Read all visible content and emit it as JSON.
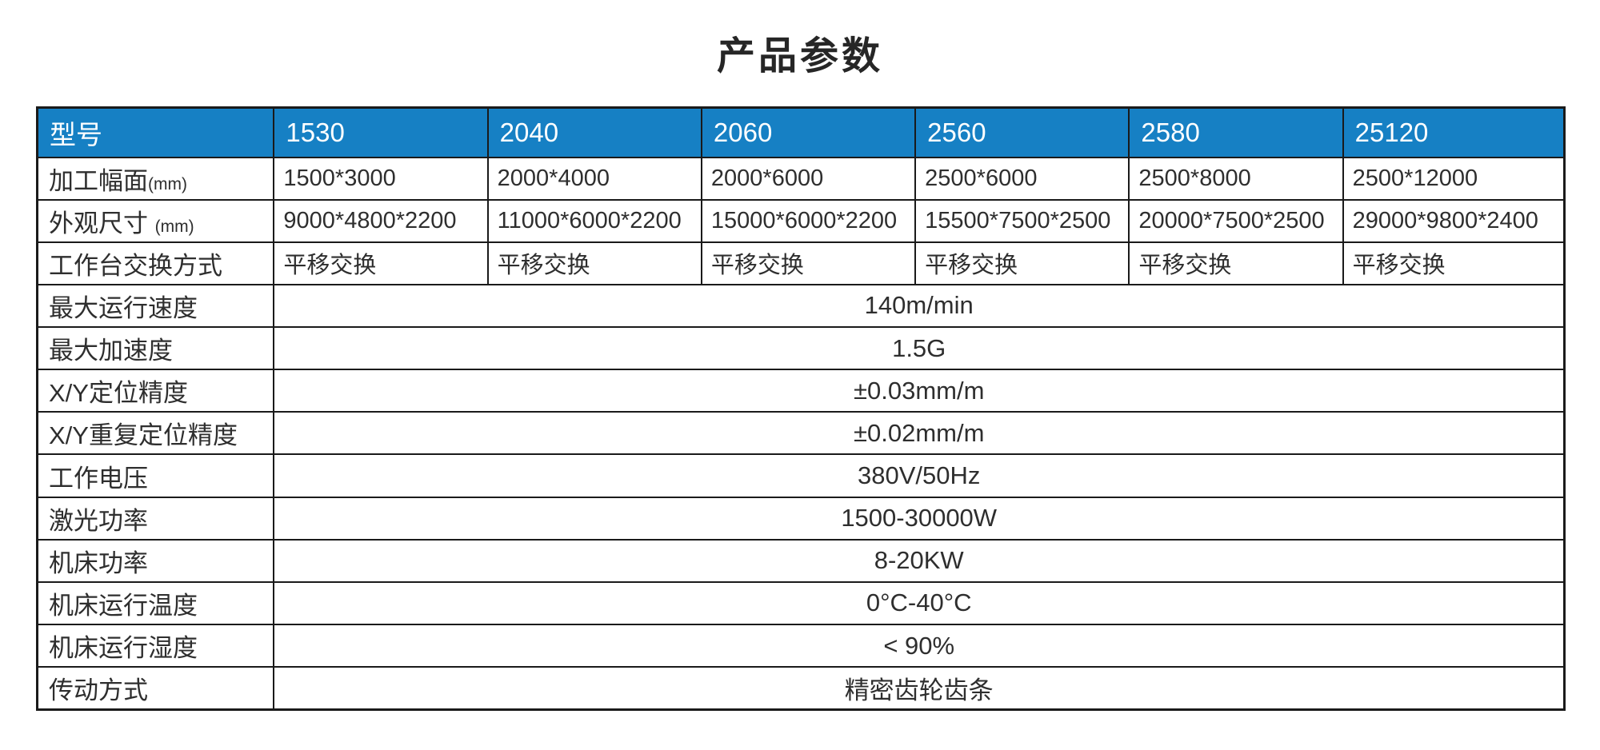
{
  "page": {
    "title": "产品参数"
  },
  "colors": {
    "header_bg": "#1680C4",
    "header_text": "#ffffff",
    "border": "#1a1a1a",
    "body_text": "#2e2e2e"
  },
  "table": {
    "header": {
      "label": "型号",
      "models": [
        "1530",
        "2040",
        "2060",
        "2560",
        "2580",
        "25120"
      ]
    },
    "per_model_rows": [
      {
        "label": "加工幅面",
        "label_suffix": "(mm)",
        "values": [
          "1500*3000",
          "2000*4000",
          "2000*6000",
          "2500*6000",
          "2500*8000",
          "2500*12000"
        ]
      },
      {
        "label": "外观尺寸",
        "label_suffix": "(mm)",
        "values": [
          "9000*4800*2200",
          "11000*6000*2200",
          "15000*6000*2200",
          "15500*7500*2500",
          "20000*7500*2500",
          "29000*9800*2400"
        ]
      },
      {
        "label": "工作台交换方式",
        "label_suffix": "",
        "values": [
          "平移交换",
          "平移交换",
          "平移交换",
          "平移交换",
          "平移交换",
          "平移交换"
        ]
      }
    ],
    "span_rows": [
      {
        "label": "最大运行速度",
        "value": "140m/min"
      },
      {
        "label": "最大加速度",
        "value": "1.5G"
      },
      {
        "label": "X/Y定位精度",
        "value": "±0.03mm/m"
      },
      {
        "label": "X/Y重复定位精度",
        "value": "±0.02mm/m"
      },
      {
        "label": "工作电压",
        "value": "380V/50Hz"
      },
      {
        "label": "激光功率",
        "value": "1500-30000W"
      },
      {
        "label": "机床功率",
        "value": "8-20KW"
      },
      {
        "label": "机床运行温度",
        "value": "0°C-40°C"
      },
      {
        "label": "机床运行湿度",
        "value": "< 90%"
      },
      {
        "label": "传动方式",
        "value": "精密齿轮齿条"
      }
    ]
  }
}
